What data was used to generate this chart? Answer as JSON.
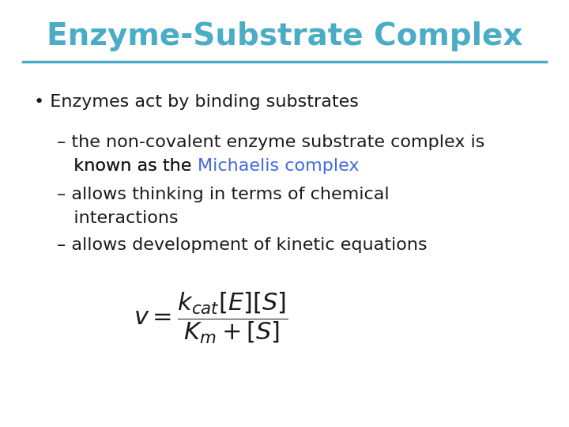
{
  "title": "Enzyme-Substrate Complex",
  "title_color": "#4BACC6",
  "title_fontsize": 28,
  "line_color": "#4BACC6",
  "background_color": "#FFFFFF",
  "michaelis_color": "#4169E1",
  "text_color": "#1a1a1a",
  "bullet_fontsize": 16,
  "equation_fontsize": 22,
  "bullet_text": "Enzymes act by binding substrates",
  "sub1a": "– the non-covalent enzyme substrate complex is",
  "sub1b_pre": "   known as the ",
  "sub1b_colored": "Michaelis complex",
  "sub2a": "– allows thinking in terms of chemical",
  "sub2b": "   interactions",
  "sub3": "– allows development of kinetic equations"
}
